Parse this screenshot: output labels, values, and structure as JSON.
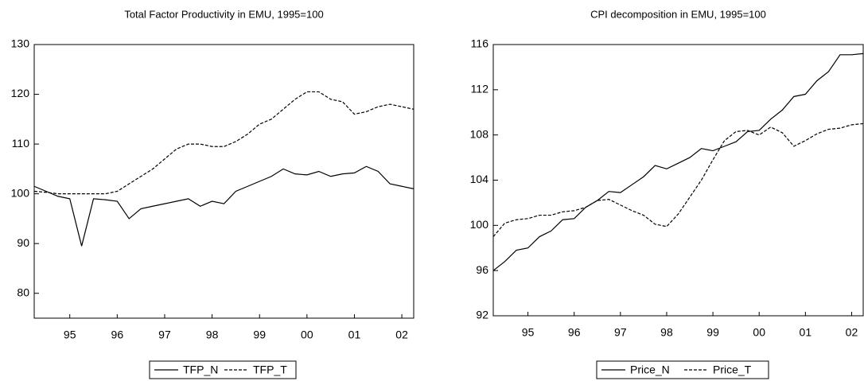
{
  "chart_data": [
    {
      "type": "line",
      "title": "Total Factor Productivity in EMU, 1995=100",
      "x": [
        1994.75,
        1995,
        1995.25,
        1995.5,
        1995.75,
        1996,
        1996.25,
        1996.5,
        1996.75,
        1997,
        1997.25,
        1997.5,
        1997.75,
        1998,
        1998.25,
        1998.5,
        1998.75,
        1999,
        1999.25,
        1999.5,
        1999.75,
        2000,
        2000.25,
        2000.5,
        2000.75,
        2001,
        2001.25,
        2001.5,
        2001.75,
        2002,
        2002.25,
        2002.5,
        2002.75
      ],
      "xlim": [
        1994.75,
        2002.75
      ],
      "xticks": [
        {
          "value": 1995.5,
          "label": "95"
        },
        {
          "value": 1996.5,
          "label": "96"
        },
        {
          "value": 1997.5,
          "label": "97"
        },
        {
          "value": 1998.5,
          "label": "98"
        },
        {
          "value": 1999.5,
          "label": "99"
        },
        {
          "value": 2000.5,
          "label": "00"
        },
        {
          "value": 2001.5,
          "label": "01"
        },
        {
          "value": 2002.5,
          "label": "02"
        }
      ],
      "ylim": [
        75,
        130
      ],
      "yticks": [
        80,
        90,
        100,
        110,
        120,
        130
      ],
      "series": [
        {
          "name": "TFP_N",
          "color": "#000000",
          "dash": false,
          "values": [
            101.5,
            100.5,
            99.5,
            99,
            89.5,
            99,
            98.8,
            98.5,
            95,
            97,
            97.5,
            98,
            98.5,
            99,
            97.5,
            98.5,
            98,
            100.5,
            101.5,
            102.5,
            103.5,
            105,
            104,
            103.8,
            104.5,
            103.5,
            104,
            104.2,
            105.5,
            104.5,
            102,
            101.5,
            101
          ]
        },
        {
          "name": "TFP_T",
          "color": "#000000",
          "dash": true,
          "values": [
            100.5,
            100.3,
            100,
            100,
            100,
            100,
            100,
            100.5,
            102,
            103.5,
            105,
            107,
            109,
            110,
            110,
            109.5,
            109.5,
            110.5,
            112,
            114,
            115,
            117,
            119,
            120.5,
            120.5,
            119,
            118.5,
            116,
            116.5,
            117.5,
            118,
            117.5,
            117
          ]
        }
      ]
    },
    {
      "type": "line",
      "title": "CPI decomposition in EMU, 1995=100",
      "x": [
        1994.75,
        1995,
        1995.25,
        1995.5,
        1995.75,
        1996,
        1996.25,
        1996.5,
        1996.75,
        1997,
        1997.25,
        1997.5,
        1997.75,
        1998,
        1998.25,
        1998.5,
        1998.75,
        1999,
        1999.25,
        1999.5,
        1999.75,
        2000,
        2000.25,
        2000.5,
        2000.75,
        2001,
        2001.25,
        2001.5,
        2001.75,
        2002,
        2002.25,
        2002.5,
        2002.75
      ],
      "xlim": [
        1994.75,
        2002.75
      ],
      "xticks": [
        {
          "value": 1995.5,
          "label": "95"
        },
        {
          "value": 1996.5,
          "label": "96"
        },
        {
          "value": 1997.5,
          "label": "97"
        },
        {
          "value": 1998.5,
          "label": "98"
        },
        {
          "value": 1999.5,
          "label": "99"
        },
        {
          "value": 2000.5,
          "label": "00"
        },
        {
          "value": 2001.5,
          "label": "01"
        },
        {
          "value": 2002.5,
          "label": "02"
        }
      ],
      "ylim": [
        92,
        116
      ],
      "yticks": [
        92,
        96,
        100,
        104,
        108,
        112,
        116
      ],
      "series": [
        {
          "name": "Price_N",
          "color": "#000000",
          "dash": false,
          "values": [
            96,
            96.8,
            97.8,
            98,
            99,
            99.5,
            100.5,
            100.6,
            101.6,
            102.2,
            103,
            102.9,
            103.6,
            104.3,
            105.3,
            105,
            105.5,
            106,
            106.8,
            106.6,
            107,
            107.4,
            108.3,
            108.4,
            109.4,
            110.2,
            111.4,
            111.6,
            112.8,
            113.6,
            115.1,
            115.1,
            115.2
          ]
        },
        {
          "name": "Price_T",
          "color": "#000000",
          "dash": true,
          "values": [
            99,
            100.2,
            100.5,
            100.6,
            100.9,
            100.9,
            101.2,
            101.3,
            101.6,
            102.2,
            102.3,
            101.8,
            101.3,
            100.9,
            100.1,
            99.9,
            101,
            102.5,
            104,
            105.8,
            107.5,
            108.3,
            108.4,
            108,
            108.7,
            108.2,
            107,
            107.5,
            108.1,
            108.5,
            108.6,
            108.9,
            109
          ]
        }
      ]
    }
  ]
}
